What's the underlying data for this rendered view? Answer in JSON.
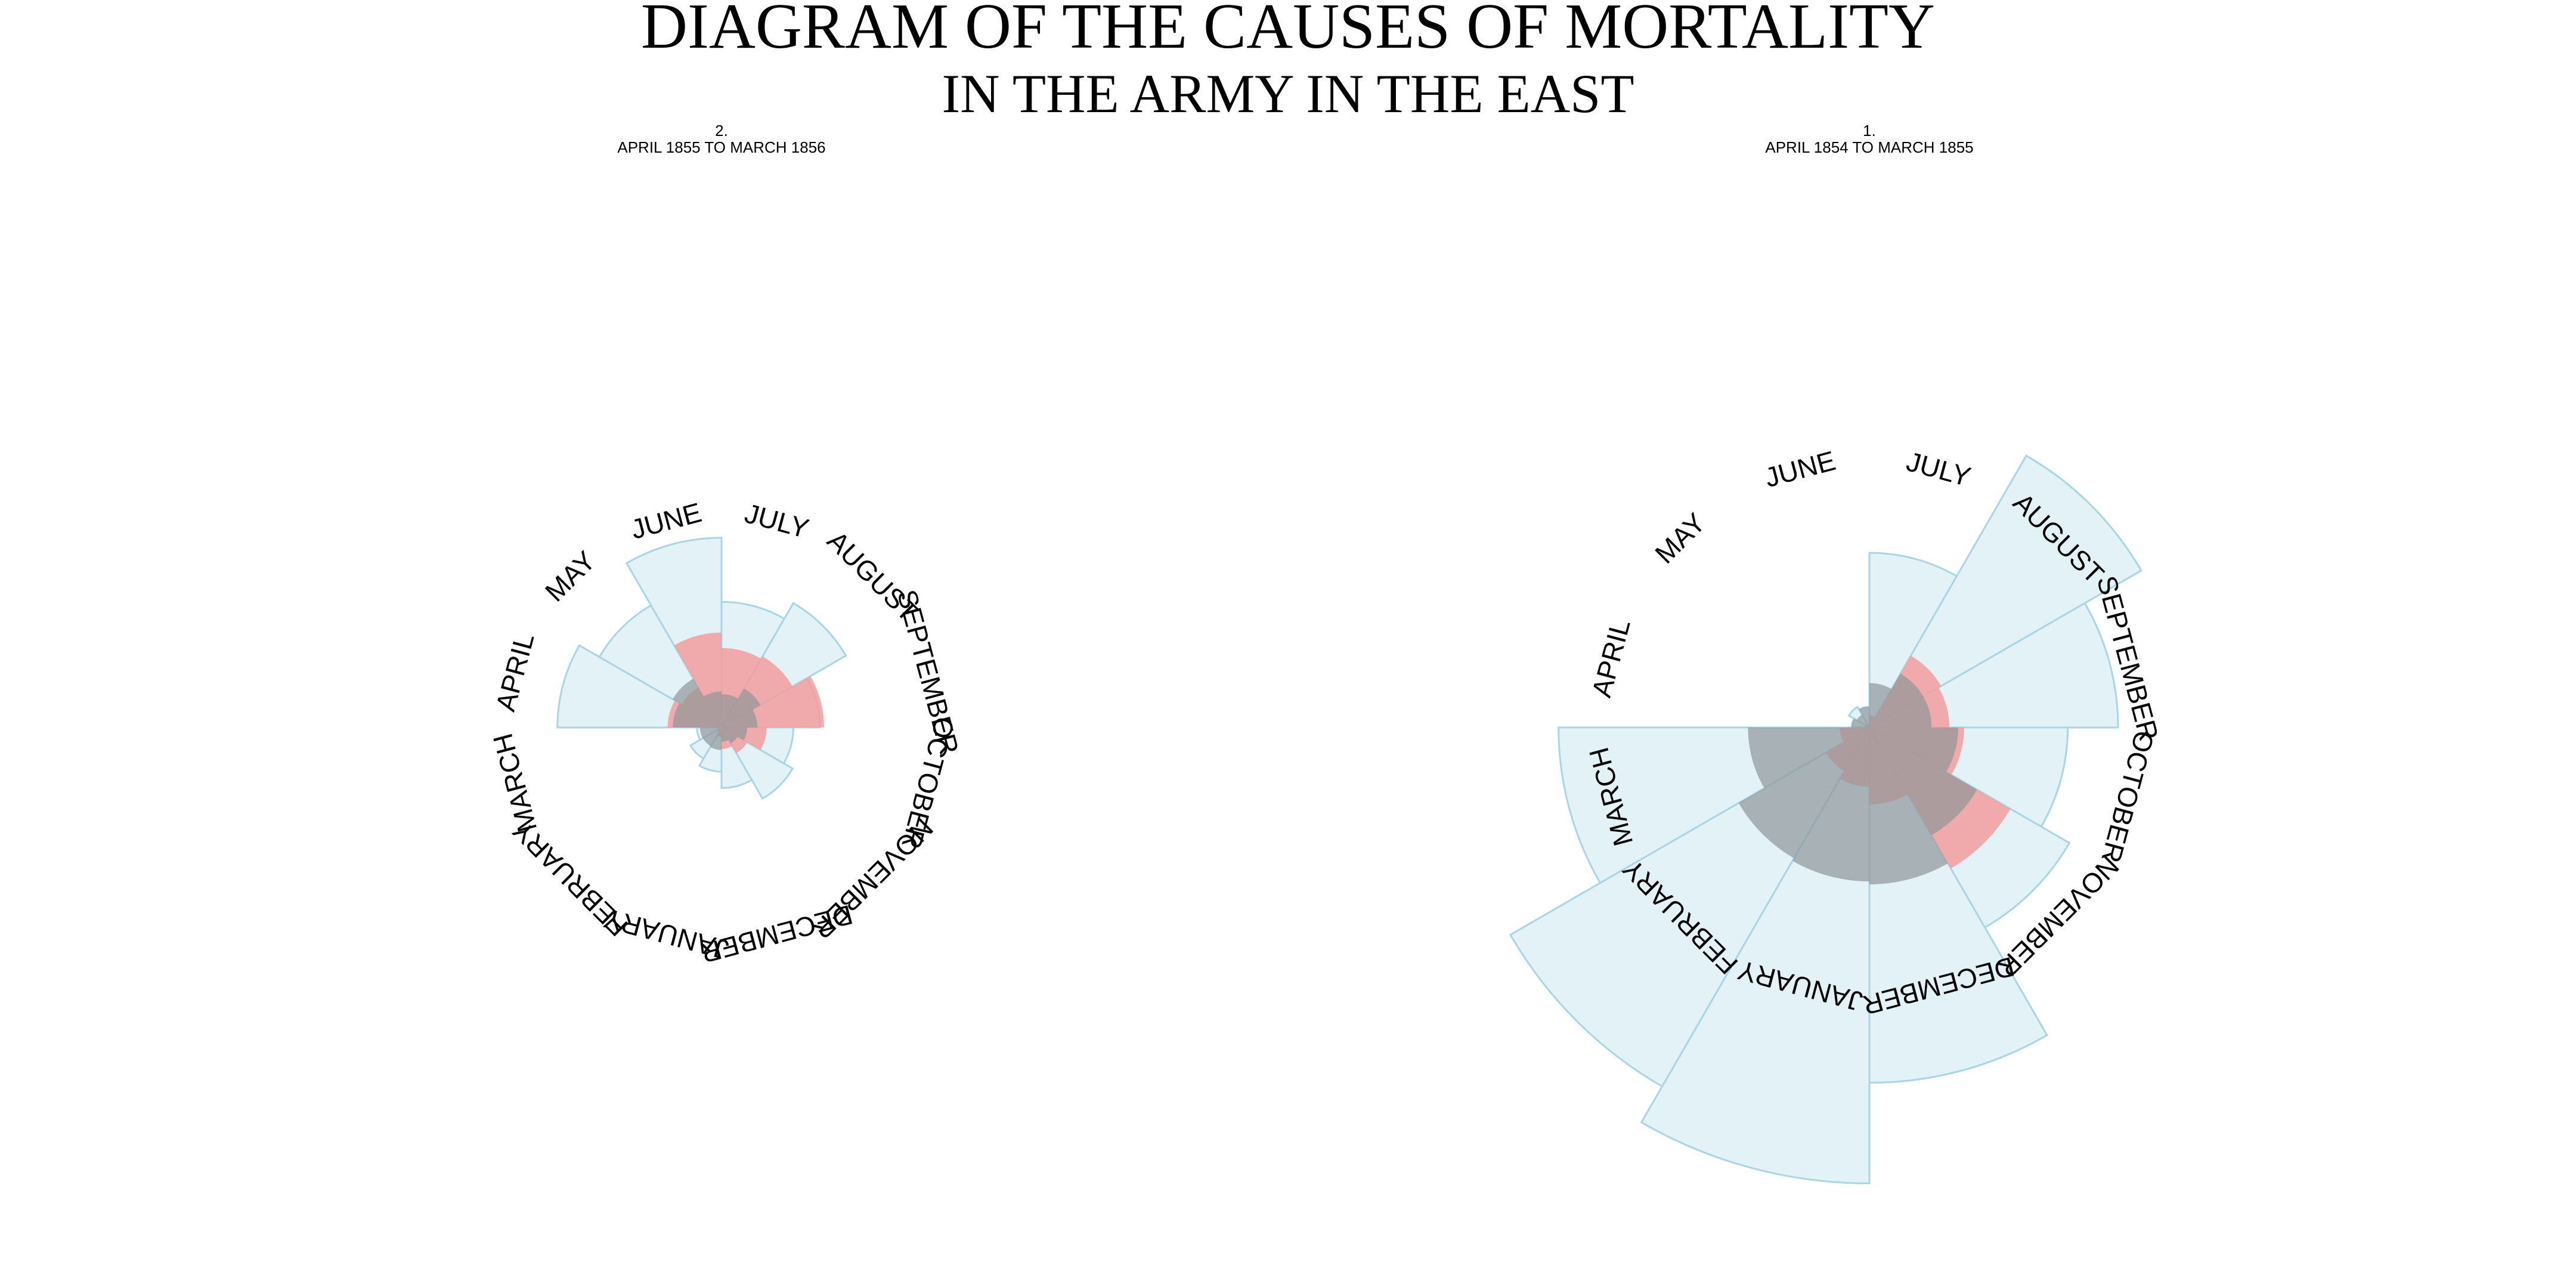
{
  "title": "DIAGRAM OF THE CAUSES OF MORTALITY",
  "subtitle": "IN THE ARMY IN THE EAST",
  "colors": {
    "disease": "#e3f2f7",
    "disease_stroke": "#a9d6e5",
    "wounds": "#f29e9e",
    "other": "#8e9699"
  },
  "chart_data": [
    {
      "type": "polar-area",
      "number": "2.",
      "period": "APRIL 1855 TO MARCH 1856",
      "months": [
        "APRIL",
        "MAY",
        "JUNE",
        "JULY",
        "AUGUST",
        "SEPTEMBER",
        "OCTOBER",
        "NOVEMBER",
        "DECEMBER",
        "JANUARY",
        "FEBRUARY",
        "MARCH"
      ],
      "series": [
        {
          "key": "disease",
          "values": [
            320,
            275,
            370,
            245,
            280,
            192,
            140,
            160,
            118,
            86,
            70,
            48
          ]
        },
        {
          "key": "wounds",
          "values": [
            105,
            90,
            185,
            155,
            160,
            200,
            88,
            58,
            42,
            18,
            10,
            6
          ]
        },
        {
          "key": "other",
          "values": [
            95,
            110,
            70,
            65,
            88,
            70,
            50,
            36,
            28,
            44,
            42,
            42
          ]
        }
      ]
    },
    {
      "type": "polar-area",
      "number": "1.",
      "period": "APRIL 1854 TO MARCH 1855",
      "months": [
        "APRIL",
        "MAY",
        "JUNE",
        "JULY",
        "AUGUST",
        "SEPTEMBER",
        "OCTOBER",
        "NOVEMBER",
        "DECEMBER",
        "JANUARY",
        "FEBRUARY",
        "MARCH"
      ],
      "series": [
        {
          "key": "disease",
          "values": [
            30,
            40,
            35,
            295,
            530,
            420,
            335,
            390,
            600,
            770,
            700,
            525
          ]
        },
        {
          "key": "wounds",
          "values": [
            5,
            5,
            5,
            20,
            140,
            135,
            160,
            275,
            130,
            100,
            85,
            50
          ]
        },
        {
          "key": "other",
          "values": [
            30,
            25,
            35,
            75,
            105,
            105,
            150,
            210,
            265,
            260,
            255,
            205
          ]
        }
      ]
    }
  ]
}
